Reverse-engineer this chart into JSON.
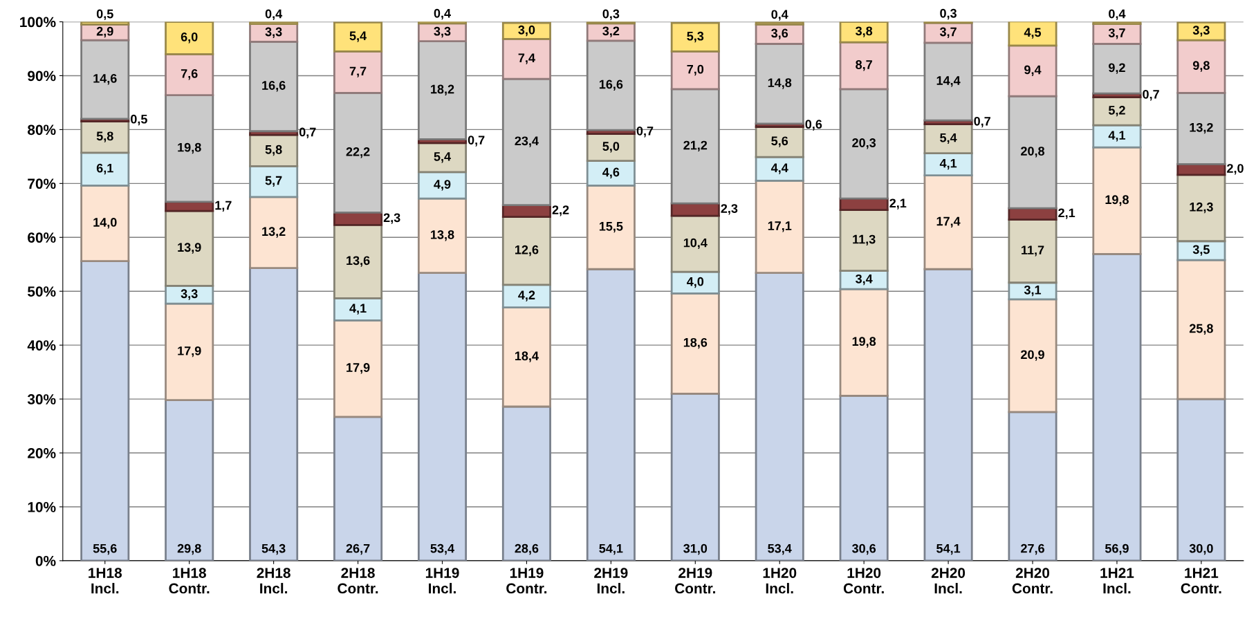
{
  "chart_data": {
    "type": "bar",
    "stacked": true,
    "categories": [
      "1H18\nIncl.",
      "1H18\nContr.",
      "2H18\nIncl.",
      "2H18\nContr.",
      "1H19\nIncl.",
      "1H19\nContr.",
      "2H19\nIncl.",
      "2H19\nContr.",
      "1H20\nIncl.",
      "1H20\nContr.",
      "2H20\nIncl.",
      "2H20\nContr.",
      "1H21\nIncl.",
      "1H21\nContr."
    ],
    "series": [
      {
        "color": "#c9d5ea",
        "values": [
          55.6,
          29.8,
          54.3,
          26.7,
          53.4,
          28.6,
          54.1,
          31.0,
          53.4,
          30.6,
          54.1,
          27.6,
          56.9,
          30.0
        ],
        "value_labels": [
          "55,6",
          "29,8",
          "54,3",
          "26,7",
          "53,4",
          "28,6",
          "54,1",
          "31,0",
          "53,4",
          "30,6",
          "54,1",
          "27,6",
          "56,9",
          "30,0"
        ]
      },
      {
        "color": "#fde4d2",
        "values": [
          14.0,
          17.9,
          13.2,
          17.9,
          13.8,
          18.4,
          15.5,
          18.6,
          17.1,
          19.8,
          17.4,
          20.9,
          19.8,
          25.8
        ],
        "value_labels": [
          "14,0",
          "17,9",
          "13,2",
          "17,9",
          "13,8",
          "18,4",
          "15,5",
          "18,6",
          "17,1",
          "19,8",
          "17,4",
          "20,9",
          "19,8",
          "25,8"
        ]
      },
      {
        "color": "#d3eef6",
        "values": [
          6.1,
          3.3,
          5.7,
          4.1,
          4.9,
          4.2,
          4.6,
          4.0,
          4.4,
          3.4,
          4.1,
          3.1,
          4.1,
          3.5
        ],
        "value_labels": [
          "6,1",
          "3,3",
          "5,7",
          "4,1",
          "4,9",
          "4,2",
          "4,6",
          "4,0",
          "4,4",
          "3,4",
          "4,1",
          "3,1",
          "4,1",
          "3,5"
        ]
      },
      {
        "color": "#ddd8c2",
        "values": [
          5.8,
          13.9,
          5.8,
          13.6,
          5.4,
          12.6,
          5.0,
          10.4,
          5.6,
          11.3,
          5.4,
          11.7,
          5.2,
          12.3
        ],
        "value_labels": [
          "5,8",
          "13,9",
          "5,8",
          "13,6",
          "5,4",
          "12,6",
          "5,0",
          "10,4",
          "5,6",
          "11,3",
          "5,4",
          "11,7",
          "5,2",
          "12,3"
        ]
      },
      {
        "color": "#8c4040",
        "values": [
          0.5,
          1.7,
          0.7,
          2.3,
          0.7,
          2.2,
          0.7,
          2.3,
          0.6,
          2.1,
          0.7,
          2.1,
          0.7,
          2.0
        ],
        "value_labels": [
          "0,5",
          "1,7",
          "0,7",
          "2,3",
          "0,7",
          "2,2",
          "0,7",
          "2,3",
          "0,6",
          "2,1",
          "0,7",
          "2,1",
          "0,7",
          "2,0"
        ]
      },
      {
        "color": "#cacaca",
        "values": [
          14.6,
          19.8,
          16.6,
          22.2,
          18.2,
          23.4,
          16.6,
          21.2,
          14.8,
          20.3,
          14.4,
          20.8,
          9.2,
          13.2
        ],
        "value_labels": [
          "14,6",
          "19,8",
          "16,6",
          "22,2",
          "18,2",
          "23,4",
          "16,6",
          "21,2",
          "14,8",
          "20,3",
          "14,4",
          "20,8",
          "9,2",
          "13,2"
        ]
      },
      {
        "color": "#f2cccc",
        "values": [
          2.9,
          7.6,
          3.3,
          7.7,
          3.3,
          7.4,
          3.2,
          7.0,
          3.6,
          8.7,
          3.7,
          9.4,
          3.7,
          9.8
        ],
        "value_labels": [
          "2,9",
          "7,6",
          "3,3",
          "7,7",
          "3,3",
          "7,4",
          "3,2",
          "7,0",
          "3,6",
          "8,7",
          "3,7",
          "9,4",
          "3,7",
          "9,8"
        ]
      },
      {
        "color": "#ffe27a",
        "values": [
          0.5,
          6.0,
          0.4,
          5.4,
          0.4,
          3.0,
          0.3,
          5.3,
          0.4,
          3.8,
          0.3,
          4.5,
          0.4,
          3.3
        ],
        "value_labels": [
          "0,5",
          "6,0",
          "0,4",
          "5,4",
          "0,4",
          "3,0",
          "0,3",
          "5,3",
          "0,4",
          "3,8",
          "0,3",
          "4,5",
          "0,4",
          "3,3"
        ]
      }
    ],
    "ylim": [
      0,
      100
    ],
    "yticks": [
      {
        "value": 0,
        "label": "0%"
      },
      {
        "value": 10,
        "label": "10%"
      },
      {
        "value": 20,
        "label": "20%"
      },
      {
        "value": 30,
        "label": "30%"
      },
      {
        "value": 40,
        "label": "40%"
      },
      {
        "value": 50,
        "label": "50%"
      },
      {
        "value": 60,
        "label": "60%"
      },
      {
        "value": 70,
        "label": "70%"
      },
      {
        "value": 80,
        "label": "80%"
      },
      {
        "value": 90,
        "label": "90%"
      },
      {
        "value": 100,
        "label": "100%"
      }
    ],
    "grid": "y",
    "legend": false
  }
}
